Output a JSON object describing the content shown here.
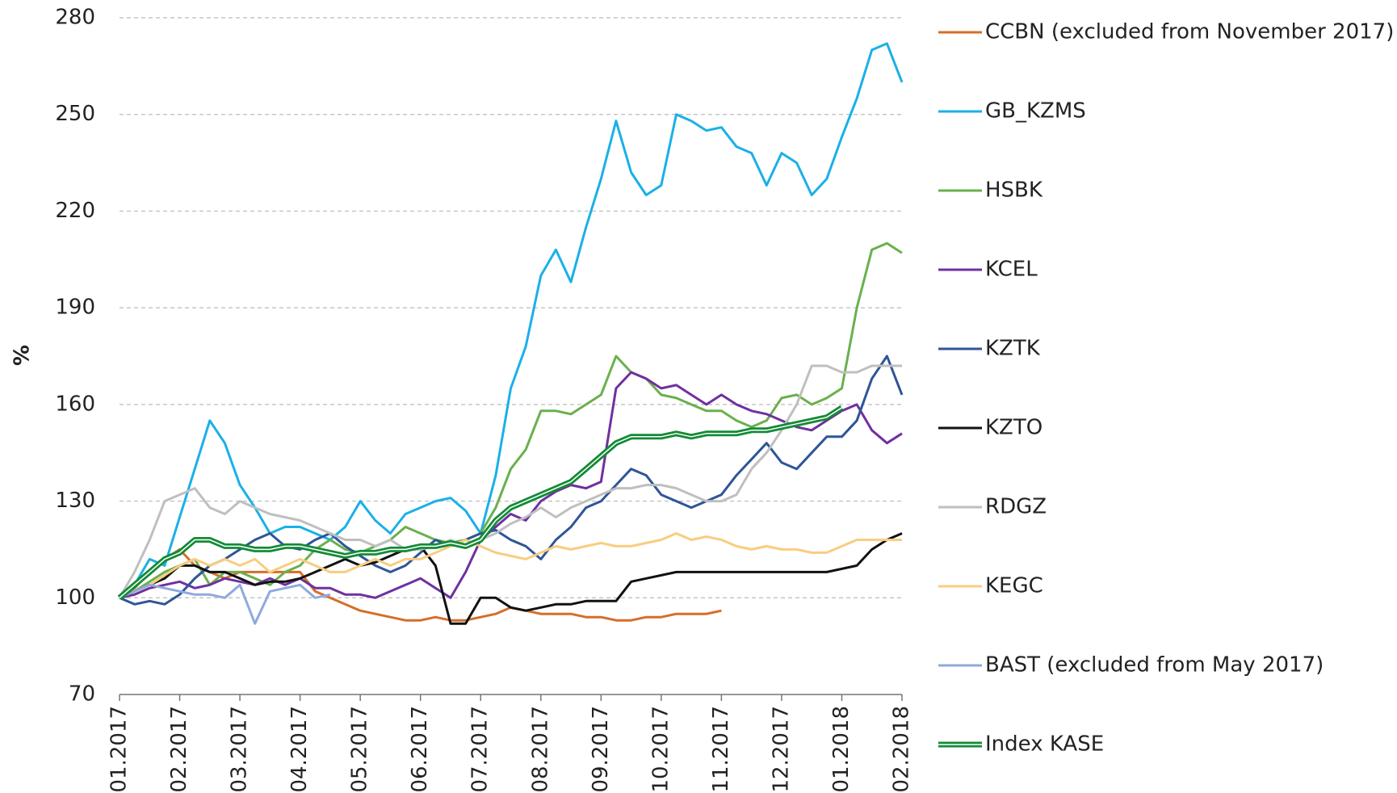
{
  "chart_data": {
    "type": "line",
    "ylabel": "%",
    "categories": [
      "01.2017",
      null,
      null,
      null,
      "02.2017",
      null,
      null,
      null,
      "03.2017",
      null,
      null,
      null,
      "04.2017",
      null,
      null,
      null,
      "05.2017",
      null,
      null,
      null,
      "06.2017",
      null,
      null,
      null,
      "07.2017",
      null,
      null,
      null,
      "08.2017",
      null,
      null,
      null,
      "09.2017",
      null,
      null,
      null,
      "10.2017",
      null,
      null,
      null,
      "11.2017",
      null,
      null,
      null,
      "12.2017",
      null,
      null,
      null,
      "01.2018",
      null,
      null,
      null,
      "02.2018"
    ],
    "ylim": [
      70,
      280
    ],
    "yticks": [
      70,
      100,
      130,
      160,
      190,
      220,
      250,
      280
    ],
    "grid": true,
    "legend": "right",
    "series": [
      {
        "name": "CCBN (excluded from November 2017)",
        "color": "#d66e28",
        "values": [
          100,
          103,
          108,
          112,
          115,
          110,
          108,
          106,
          108,
          108,
          108,
          108,
          108,
          102,
          100,
          98,
          96,
          95,
          94,
          93,
          93,
          94,
          93,
          93,
          94,
          95,
          97,
          96,
          95,
          95,
          95,
          94,
          94,
          93,
          93,
          94,
          94,
          95,
          95,
          95,
          96,
          null,
          null,
          null,
          null,
          null,
          null,
          null,
          null,
          null,
          null,
          null,
          null
        ]
      },
      {
        "name": "GB_KZMS",
        "color": "#1ab0e8",
        "values": [
          100,
          104,
          112,
          110,
          125,
          140,
          155,
          148,
          135,
          128,
          120,
          122,
          122,
          120,
          118,
          122,
          130,
          124,
          120,
          126,
          128,
          130,
          131,
          127,
          120,
          138,
          165,
          178,
          200,
          208,
          198,
          215,
          230,
          248,
          232,
          225,
          228,
          250,
          248,
          245,
          246,
          240,
          238,
          228,
          238,
          235,
          225,
          230,
          243,
          255,
          270,
          272,
          260
        ]
      },
      {
        "name": "HSBK",
        "color": "#6ab04c",
        "values": [
          100,
          102,
          105,
          108,
          110,
          112,
          104,
          108,
          108,
          106,
          104,
          108,
          110,
          115,
          118,
          115,
          114,
          116,
          118,
          122,
          120,
          118,
          117,
          118,
          120,
          128,
          140,
          146,
          158,
          158,
          157,
          160,
          163,
          175,
          170,
          168,
          163,
          162,
          160,
          158,
          158,
          155,
          153,
          155,
          162,
          163,
          160,
          162,
          165,
          190,
          208,
          210,
          207
        ]
      },
      {
        "name": "KCEL",
        "color": "#7030a0",
        "values": [
          100,
          101,
          103,
          104,
          105,
          103,
          104,
          106,
          105,
          104,
          106,
          104,
          106,
          103,
          103,
          101,
          101,
          100,
          102,
          104,
          106,
          103,
          100,
          108,
          118,
          122,
          126,
          124,
          130,
          133,
          135,
          134,
          136,
          165,
          170,
          168,
          165,
          166,
          163,
          160,
          163,
          160,
          158,
          157,
          155,
          153,
          152,
          155,
          158,
          160,
          152,
          148,
          151
        ]
      },
      {
        "name": "KZTK",
        "color": "#2e5597",
        "values": [
          100,
          98,
          99,
          98,
          101,
          106,
          110,
          112,
          115,
          118,
          120,
          116,
          115,
          118,
          120,
          116,
          113,
          110,
          108,
          110,
          114,
          118,
          116,
          118,
          120,
          121,
          118,
          116,
          112,
          118,
          122,
          128,
          130,
          135,
          140,
          138,
          132,
          130,
          128,
          130,
          132,
          138,
          143,
          148,
          142,
          140,
          145,
          150,
          150,
          155,
          168,
          175,
          163
        ]
      },
      {
        "name": "KZTO",
        "color": "#111111",
        "values": [
          100,
          102,
          104,
          106,
          110,
          110,
          108,
          108,
          106,
          104,
          105,
          105,
          106,
          108,
          110,
          112,
          110,
          111,
          113,
          115,
          116,
          110,
          92,
          92,
          100,
          100,
          97,
          96,
          97,
          98,
          98,
          99,
          99,
          99,
          105,
          106,
          107,
          108,
          108,
          108,
          108,
          108,
          108,
          108,
          108,
          108,
          108,
          108,
          109,
          110,
          115,
          118,
          120
        ]
      },
      {
        "name": "RDGZ",
        "color": "#bfbfbf",
        "values": [
          100,
          108,
          118,
          130,
          132,
          134,
          128,
          126,
          130,
          128,
          126,
          125,
          124,
          122,
          120,
          118,
          118,
          116,
          118,
          115,
          115,
          116,
          118,
          116,
          118,
          120,
          123,
          125,
          128,
          125,
          128,
          130,
          132,
          134,
          134,
          135,
          135,
          134,
          132,
          130,
          130,
          132,
          140,
          145,
          152,
          160,
          172,
          172,
          170,
          170,
          172,
          172,
          172
        ]
      },
      {
        "name": "KEGC",
        "color": "#f8cd80",
        "values": [
          100,
          102,
          104,
          107,
          110,
          112,
          110,
          112,
          110,
          112,
          108,
          110,
          112,
          110,
          108,
          108,
          110,
          112,
          110,
          112,
          112,
          114,
          116,
          118,
          116,
          114,
          113,
          112,
          114,
          116,
          115,
          116,
          117,
          116,
          116,
          117,
          118,
          120,
          118,
          119,
          118,
          116,
          115,
          116,
          115,
          115,
          114,
          114,
          116,
          118,
          118,
          118,
          118
        ]
      },
      {
        "name": "BAST (excluded from May 2017)",
        "color": "#8faadc",
        "values": [
          100,
          102,
          104,
          103,
          102,
          101,
          101,
          100,
          104,
          92,
          102,
          103,
          104,
          100,
          101,
          null,
          null,
          null,
          null,
          null,
          null,
          null,
          null,
          null,
          null,
          null,
          null,
          null,
          null,
          null,
          null,
          null,
          null,
          null,
          null,
          null,
          null,
          null,
          null,
          null,
          null,
          null,
          null,
          null,
          null,
          null,
          null,
          null,
          null,
          null,
          null,
          null,
          null
        ]
      },
      {
        "name": "Index KASE",
        "color": "#138a36",
        "line_style": "double",
        "values": [
          100,
          104,
          108,
          112,
          114,
          118,
          118,
          116,
          116,
          115,
          115,
          116,
          116,
          115,
          114,
          113,
          114,
          114,
          115,
          115,
          116,
          116,
          117,
          116,
          118,
          124,
          128,
          130,
          132,
          134,
          136,
          140,
          144,
          148,
          150,
          150,
          150,
          151,
          150,
          151,
          151,
          151,
          152,
          152,
          153,
          154,
          155,
          156,
          159,
          null,
          null,
          null,
          null
        ]
      }
    ]
  }
}
